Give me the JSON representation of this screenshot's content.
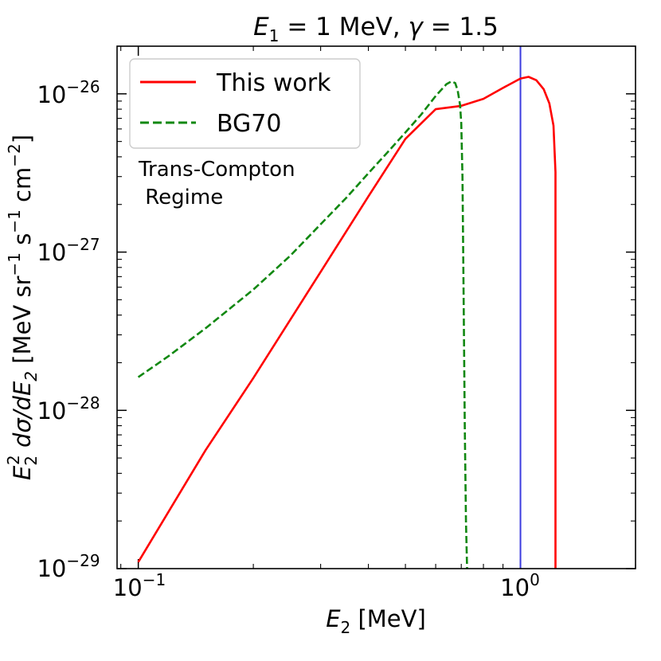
{
  "chart_data": {
    "type": "line",
    "title_parts": {
      "e": "E",
      "sub1": "1",
      "eq1": " = 1 MeV, ",
      "gamma": "γ",
      "eq2": " = 1.5"
    },
    "xlabel_parts": {
      "e": "E",
      "sub": "2",
      "unit": " [MeV]"
    },
    "ylabel_parts": {
      "e": "E",
      "sub2a": "2",
      "sup2": "2",
      "dsig": " dσ/dE",
      "sub2b": "2",
      "bracket_open": " [MeV sr",
      "m1a": "−1",
      "s": " s",
      "m1b": "−1",
      "cm": " cm",
      "m2": "−2",
      "bracket_close": "]"
    },
    "x_scale": "log",
    "y_scale": "log",
    "xlim": [
      0.088,
      2.0
    ],
    "ylim": [
      1e-29,
      2e-26
    ],
    "x_ticks": [
      {
        "value": 0.1,
        "base": "10",
        "exp": "−1"
      },
      {
        "value": 1.0,
        "base": "10",
        "exp": "0"
      }
    ],
    "y_ticks": [
      {
        "value": 1e-29,
        "base": "10",
        "exp": "−29"
      },
      {
        "value": 1e-28,
        "base": "10",
        "exp": "−28"
      },
      {
        "value": 1e-27,
        "base": "10",
        "exp": "−27"
      },
      {
        "value": 1e-26,
        "base": "10",
        "exp": "−26"
      }
    ],
    "vline": {
      "x": 1.0,
      "color": "#3b3bdf"
    },
    "legend": {
      "location": "upper left"
    },
    "annotation": {
      "line1": "Trans-Compton",
      "line2": " Regime"
    },
    "series": [
      {
        "name": "This work",
        "color": "#ff0000",
        "style": "solid",
        "x": [
          0.1,
          0.15,
          0.2,
          0.3,
          0.4,
          0.5,
          0.6,
          0.7,
          0.8,
          0.9,
          1.0,
          1.05,
          1.1,
          1.15,
          1.19,
          1.22,
          1.235,
          1.235
        ],
        "y": [
          1.1e-29,
          5.6e-29,
          1.6e-28,
          7.5e-28,
          2.25e-27,
          5.2e-27,
          8e-27,
          8.4e-27,
          9.3e-27,
          1.09e-26,
          1.25e-26,
          1.28e-26,
          1.22e-26,
          1.07e-26,
          8.7e-27,
          6.3e-27,
          3.2e-27,
          1e-29
        ]
      },
      {
        "name": "BG70",
        "color": "#118811",
        "style": "dashed",
        "x": [
          0.1,
          0.12,
          0.15,
          0.2,
          0.25,
          0.3,
          0.35,
          0.4,
          0.45,
          0.5,
          0.55,
          0.6,
          0.64,
          0.66,
          0.675,
          0.685,
          0.695,
          0.7,
          0.705,
          0.71,
          0.715,
          0.72,
          0.725
        ],
        "y": [
          1.62e-28,
          2.2e-28,
          3.3e-28,
          5.8e-28,
          9.5e-28,
          1.5e-27,
          2.2e-27,
          3.15e-27,
          4.3e-27,
          5.7e-27,
          7.4e-27,
          9.7e-27,
          1.15e-26,
          1.2e-26,
          1.17e-26,
          1.05e-26,
          8.5e-27,
          6.5e-27,
          3e-27,
          5e-28,
          8e-29,
          2e-29,
          1e-29
        ]
      }
    ]
  }
}
